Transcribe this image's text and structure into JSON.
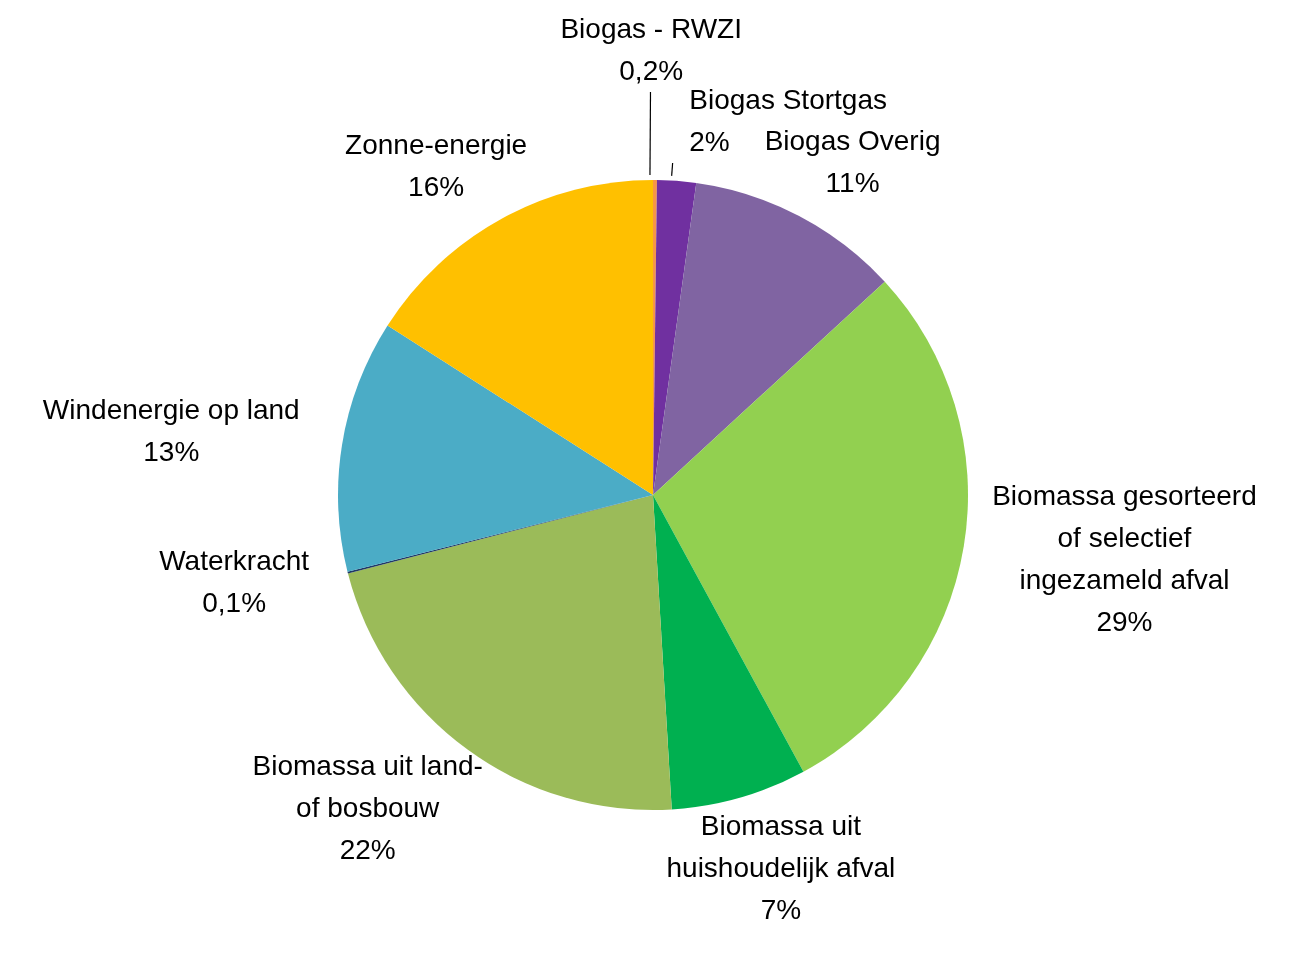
{
  "chart_data": {
    "type": "pie",
    "categories": [
      "Biogas - RWZI",
      "Biogas Stortgas",
      "Biogas Overig",
      "Biomassa gesorteerd of selectief ingezameld afval",
      "Biomassa uit huishoudelijk afval",
      "Biomassa uit land- of bosbouw",
      "Waterkracht",
      "Windenergie op land",
      "Zonne-energie"
    ],
    "values": [
      0.2,
      2,
      11,
      29,
      7,
      22,
      0.1,
      13,
      16
    ],
    "value_labels": [
      "0,2%",
      "2%",
      "11%",
      "29%",
      "7%",
      "22%",
      "0,1%",
      "13%",
      "16%"
    ],
    "colors": [
      "#f79646",
      "#7030a0",
      "#8064a2",
      "#92d050",
      "#00b050",
      "#9bbb59",
      "#1f3864",
      "#4bacc6",
      "#ffc000"
    ]
  }
}
